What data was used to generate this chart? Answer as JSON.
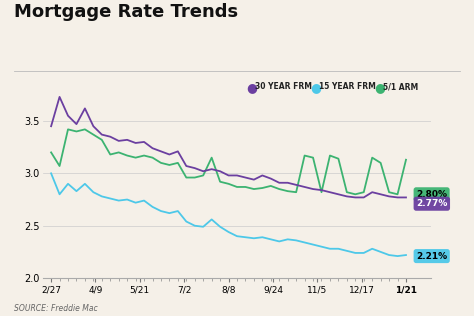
{
  "title": "Mortgage Rate Trends",
  "background_color": "#f5f0e8",
  "source_text": "SOURCE: Freddie Mac",
  "x_labels": [
    "2/27",
    "4/9",
    "5/21",
    "7/2",
    "8/8",
    "9/24",
    "11/5",
    "12/17",
    "1/21"
  ],
  "ylim": [
    2.0,
    3.75
  ],
  "yticks": [
    2.0,
    2.5,
    3.0,
    3.5
  ],
  "legend_entries": [
    "30 YEAR FRM",
    "15 YEAR FRM",
    "5/1 ARM"
  ],
  "legend_colors": [
    "#6b3fa0",
    "#4dc8e8",
    "#3cb371"
  ],
  "thirty_year": [
    3.45,
    3.73,
    3.55,
    3.47,
    3.62,
    3.45,
    3.37,
    3.35,
    3.31,
    3.32,
    3.29,
    3.3,
    3.24,
    3.21,
    3.18,
    3.21,
    3.07,
    3.05,
    3.02,
    3.04,
    3.02,
    2.98,
    2.98,
    2.96,
    2.94,
    2.98,
    2.95,
    2.91,
    2.91,
    2.89,
    2.87,
    2.85,
    2.84,
    2.82,
    2.8,
    2.78,
    2.77,
    2.77,
    2.82,
    2.8,
    2.78,
    2.77,
    2.77
  ],
  "fifteen_year": [
    3.0,
    2.8,
    2.9,
    2.83,
    2.9,
    2.82,
    2.78,
    2.76,
    2.74,
    2.75,
    2.72,
    2.74,
    2.68,
    2.64,
    2.62,
    2.64,
    2.54,
    2.5,
    2.49,
    2.56,
    2.49,
    2.44,
    2.4,
    2.39,
    2.38,
    2.39,
    2.37,
    2.35,
    2.37,
    2.36,
    2.34,
    2.32,
    2.3,
    2.28,
    2.28,
    2.26,
    2.24,
    2.24,
    2.28,
    2.25,
    2.22,
    2.21,
    2.22
  ],
  "arm_51": [
    3.2,
    3.07,
    3.42,
    3.4,
    3.42,
    3.37,
    3.32,
    3.18,
    3.2,
    3.17,
    3.15,
    3.17,
    3.15,
    3.1,
    3.08,
    3.1,
    2.96,
    2.96,
    2.98,
    3.15,
    2.92,
    2.9,
    2.87,
    2.87,
    2.85,
    2.86,
    2.88,
    2.85,
    2.83,
    2.82,
    3.17,
    3.15,
    2.82,
    3.17,
    3.14,
    2.82,
    2.8,
    2.82,
    3.15,
    3.1,
    2.82,
    2.8,
    3.13
  ],
  "n_points": 43,
  "bubble_arm_text": "2.80%",
  "bubble_arm_color": "#3cb371",
  "bubble_arm_value": 2.8,
  "bubble_30yr_text": "2.77%",
  "bubble_30yr_color": "#6b3fa0",
  "bubble_30yr_value": 2.77,
  "bubble_15yr_text": "2.21%",
  "bubble_15yr_color": "#4dc8e8",
  "bubble_15yr_value": 2.21
}
